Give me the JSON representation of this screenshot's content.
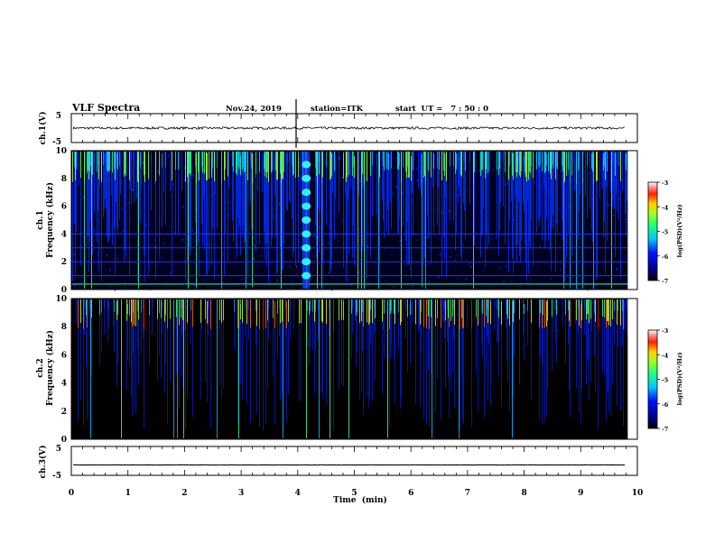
{
  "header": {
    "title": "VLF Spectra",
    "date": "Nov.24, 2019",
    "station": "station=ITK",
    "start_ut": "start  UT =   7 : 50 : 0"
  },
  "chart_data": [
    {
      "name": "ch1-voltage",
      "type": "line",
      "ylabel": "ch.1(V)",
      "ylim": [
        -5,
        5
      ],
      "yticks": [
        "5",
        "-5"
      ],
      "level": 0,
      "noise_amplitude": 0.4,
      "spike_minute": 4.0
    },
    {
      "name": "ch1-spectrogram",
      "type": "heatmap",
      "ylabel": "ch.1",
      "ylabel2": "Frequency  (kHz)",
      "ylim": [
        0,
        10
      ],
      "yticks": [
        "0",
        "2",
        "4",
        "6",
        "8",
        "10"
      ],
      "xlim": [
        0,
        9.83
      ],
      "color_scale": "log(PSD) (V²/Hz)",
      "colorbar_label": "log(PSD)(V²/Hz)",
      "colorbar_range": [
        -7,
        -3
      ],
      "colorbar_ticks": [
        "-3",
        "-4",
        "-5",
        "-6",
        "-7"
      ],
      "horizontal_lines_khz": [
        0.4,
        1.0,
        2.0,
        3.0,
        4.0
      ],
      "pulse_train_minute": 4.15,
      "pulse_centers_khz": [
        1.0,
        2.0,
        3.0,
        4.0,
        5.0,
        6.0,
        7.0,
        8.0,
        9.0
      ]
    },
    {
      "name": "ch2-spectrogram",
      "type": "heatmap",
      "ylabel": "ch.2",
      "ylabel2": "Frequency  (kHz)",
      "ylim": [
        0,
        10
      ],
      "yticks": [
        "0",
        "2",
        "4",
        "6",
        "8",
        "10"
      ],
      "xlim": [
        0,
        9.83
      ],
      "color_scale": "log(PSD) (V²/Hz)",
      "colorbar_label": "log(PSD)(V²/Hz)",
      "colorbar_range": [
        -7,
        -3
      ],
      "colorbar_ticks": [
        "-3",
        "-4",
        "-5",
        "-6",
        "-7"
      ]
    },
    {
      "name": "ch3-voltage",
      "type": "line",
      "ylabel": "ch.3(V)",
      "ylim": [
        -5,
        5
      ],
      "yticks": [
        "5",
        "-5"
      ],
      "level": -1.4,
      "noise_amplitude": 0.05
    }
  ],
  "x_axis": {
    "label": "Time  (min)",
    "ticks": [
      "0",
      "1",
      "2",
      "3",
      "4",
      "5",
      "6",
      "7",
      "8",
      "9",
      "10"
    ],
    "xlim": [
      0,
      10
    ]
  }
}
